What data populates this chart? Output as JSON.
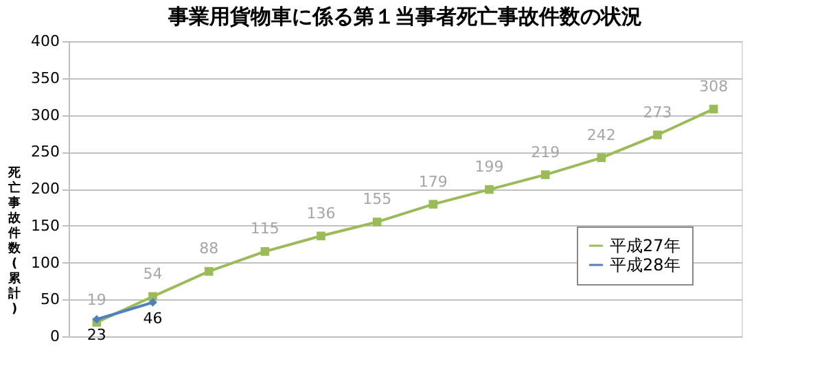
{
  "chart_data": {
    "type": "line",
    "title": "事業用貨物車に係る第１当事者死亡事故件数の状況",
    "ylabel": "死亡事故件数(累計)",
    "categories": [
      null,
      null,
      null,
      null,
      null,
      null,
      null,
      null,
      null,
      null,
      null,
      null
    ],
    "series": [
      {
        "name": "平成27年",
        "color": "#9bbb59",
        "marker": "square",
        "values": [
          19,
          54,
          88,
          115,
          136,
          155,
          179,
          199,
          219,
          242,
          273,
          308
        ]
      },
      {
        "name": "平成28年",
        "color": "#4f81bd",
        "marker": "diamond",
        "values": [
          23,
          46,
          null,
          null,
          null,
          null,
          null,
          null,
          null,
          null,
          null,
          null
        ]
      }
    ],
    "ylim": [
      0,
      400
    ],
    "yticks": [
      0,
      50,
      100,
      150,
      200,
      250,
      300,
      350,
      400
    ],
    "grid": "y",
    "legend": "right",
    "data_labels": true,
    "tick_labels": "y"
  }
}
